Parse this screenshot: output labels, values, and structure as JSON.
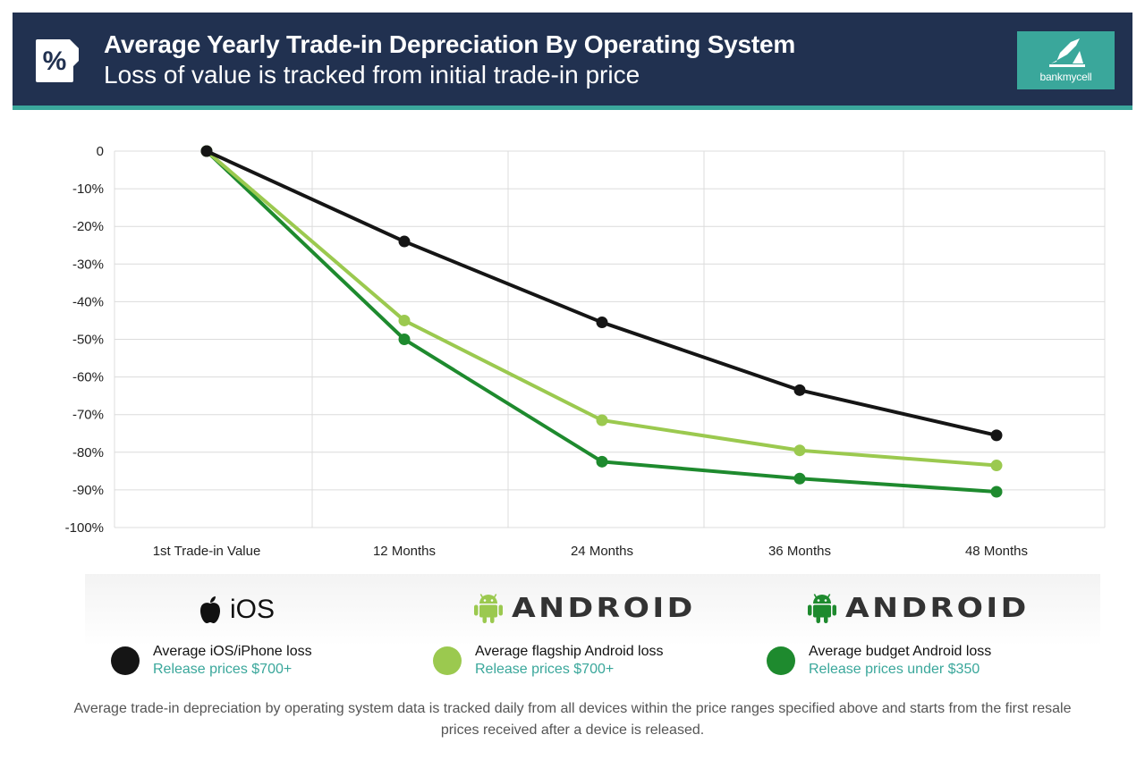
{
  "header": {
    "title": "Average Yearly Trade-in Depreciation By Operating System",
    "subtitle": "Loss of value is tracked from initial trade-in price",
    "icon": "percent-badge-icon",
    "logo_text": "bankmycell",
    "logo_icon": "bankmycell-logo-icon",
    "colors": {
      "background": "#213150",
      "accent": "#3aa79b"
    }
  },
  "chart_data": {
    "type": "line",
    "title": "Average Yearly Trade-in Depreciation By Operating System",
    "subtitle": "Loss of value is tracked from initial trade-in price",
    "categories": [
      "1st Trade-in Value",
      "12 Months",
      "24 Months",
      "36 Months",
      "48 Months"
    ],
    "y_ticks": [
      "0",
      "-10%",
      "-20%",
      "-30%",
      "-40%",
      "-50%",
      "-60%",
      "-70%",
      "-80%",
      "-90%",
      "-100%"
    ],
    "ylim": [
      -100,
      0
    ],
    "grid": true,
    "series": [
      {
        "name": "Average iOS/iPhone loss",
        "color": "#151515",
        "values": [
          0,
          -24,
          -45.5,
          -63.5,
          -75.5
        ]
      },
      {
        "name": "Average flagship Android loss",
        "color": "#9bc94f",
        "values": [
          0,
          -45,
          -71.5,
          -79.5,
          -83.5
        ]
      },
      {
        "name": "Average budget Android loss",
        "color": "#1e8a2e",
        "values": [
          0,
          -50,
          -82.5,
          -87,
          -90.5
        ]
      }
    ]
  },
  "legend": {
    "groups": [
      {
        "os_label": "iOS",
        "os_icon": "apple-icon"
      },
      {
        "os_label": "ANDROID",
        "os_icon": "android-robot-icon",
        "icon_color": "#9bc94f"
      },
      {
        "os_label": "ANDROID",
        "os_icon": "android-robot-icon",
        "icon_color": "#1e8a2e"
      }
    ],
    "items": [
      {
        "name": "Average iOS/iPhone loss",
        "sub": "Release prices $700+",
        "color": "#151515"
      },
      {
        "name": "Average flagship Android loss",
        "sub": "Release prices $700+",
        "color": "#9bc94f"
      },
      {
        "name": "Average budget Android loss",
        "sub": "Release prices under $350",
        "color": "#1e8a2e"
      }
    ]
  },
  "footnote": "Average trade-in depreciation by operating system data is tracked daily from all devices within the price ranges specified above and starts from the first resale prices received after a device is released."
}
